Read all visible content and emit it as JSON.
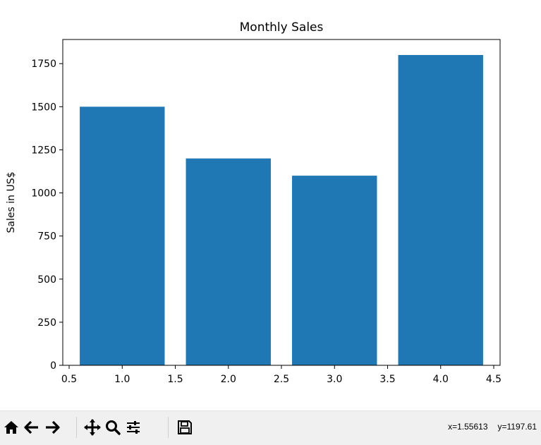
{
  "chart_data": {
    "type": "bar",
    "title": "Monthly Sales",
    "xlabel": "",
    "ylabel": "Sales in US$",
    "x": [
      1.0,
      2.0,
      3.0,
      4.0
    ],
    "values": [
      1500,
      1200,
      1100,
      1800
    ],
    "bar_width": 0.8,
    "xlim": [
      0.44,
      4.56
    ],
    "ylim": [
      0,
      1890
    ],
    "xticks": [
      "0.5",
      "1.0",
      "1.5",
      "2.0",
      "2.5",
      "3.0",
      "3.5",
      "4.0",
      "4.5"
    ],
    "xtick_values": [
      0.5,
      1.0,
      1.5,
      2.0,
      2.5,
      3.0,
      3.5,
      4.0,
      4.5
    ],
    "yticks": [
      "0",
      "250",
      "500",
      "750",
      "1000",
      "1250",
      "1500",
      "1750"
    ],
    "ytick_values": [
      0,
      250,
      500,
      750,
      1000,
      1250,
      1500,
      1750
    ],
    "bar_color": "#1f77b4",
    "grid": false,
    "legend": "none"
  },
  "toolbar": {
    "buttons": [
      {
        "name": "home-button",
        "icon": "home-icon"
      },
      {
        "name": "back-button",
        "icon": "arrow-left-icon"
      },
      {
        "name": "forward-button",
        "icon": "arrow-right-icon"
      },
      {
        "name": "pan-button",
        "icon": "move-icon"
      },
      {
        "name": "zoom-button",
        "icon": "magnifier-icon"
      },
      {
        "name": "configure-subplots-button",
        "icon": "sliders-icon"
      },
      {
        "name": "save-button",
        "icon": "floppy-disk-icon"
      }
    ],
    "coords": {
      "x": "x=1.55613",
      "y": "y=1197.61"
    }
  }
}
